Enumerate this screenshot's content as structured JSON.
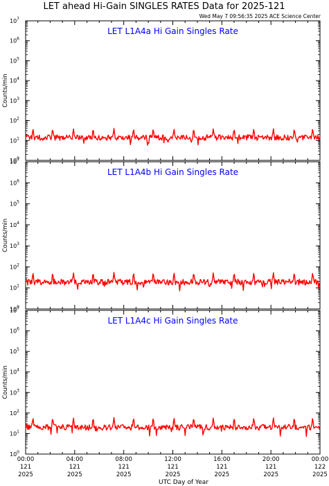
{
  "header": {
    "title": "LET ahead Hi-Gain SINGLES RATES Data for 2025-121",
    "timestamp": "Wed May  7 09:56:35 2025 ACE Science Center"
  },
  "colors": {
    "series_line": "#ff0000",
    "panel_title": "#0000ff",
    "axis": "#000000",
    "background": "#ffffff"
  },
  "x_axis": {
    "label": "UTC Day of Year",
    "ticks": [
      {
        "time": "00:00",
        "day": "121",
        "year": "2025",
        "hour": 0
      },
      {
        "time": "04:00",
        "day": "121",
        "year": "2025",
        "hour": 4
      },
      {
        "time": "08:00",
        "day": "121",
        "year": "2025",
        "hour": 8
      },
      {
        "time": "12:00",
        "day": "121",
        "year": "2025",
        "hour": 12
      },
      {
        "time": "16:00",
        "day": "121",
        "year": "2025",
        "hour": 16
      },
      {
        "time": "20:00",
        "day": "121",
        "year": "2025",
        "hour": 20
      },
      {
        "time": "00:00",
        "day": "122",
        "year": "2025",
        "hour": 24
      }
    ]
  },
  "chart_data": [
    {
      "type": "line",
      "title": "LET L1A4a Hi Gain Singles Rate",
      "ylabel": "Counts/min",
      "yscale": "log",
      "ylim": [
        1,
        10000000
      ],
      "xlim_hours": [
        0,
        24
      ],
      "yticks": [
        {
          "base": "10",
          "exp": "0",
          "value": 1
        },
        {
          "base": "10",
          "exp": "1",
          "value": 10
        },
        {
          "base": "10",
          "exp": "2",
          "value": 100
        },
        {
          "base": "10",
          "exp": "3",
          "value": 1000
        },
        {
          "base": "10",
          "exp": "4",
          "value": 10000
        },
        {
          "base": "10",
          "exp": "5",
          "value": 100000
        },
        {
          "base": "10",
          "exp": "6",
          "value": 1000000
        },
        {
          "base": "10",
          "exp": "7",
          "value": 10000000
        }
      ],
      "series": [
        {
          "baseline_counts_per_min": 14,
          "spike_peak_counts_per_min": 40,
          "spike_times_hours": [
            0.6,
            2.2,
            3.9,
            5.5,
            7.2,
            8.8,
            10.4,
            12.1,
            13.7,
            15.3,
            17.0,
            18.6,
            20.2,
            21.9,
            23.4
          ]
        }
      ]
    },
    {
      "type": "line",
      "title": "LET L1A4b Hi Gain Singles Rate",
      "ylabel": "Counts/min",
      "yscale": "log",
      "ylim": [
        1,
        10000000
      ],
      "xlim_hours": [
        0,
        24
      ],
      "yticks": [
        {
          "base": "10",
          "exp": "0",
          "value": 1
        },
        {
          "base": "10",
          "exp": "1",
          "value": 10
        },
        {
          "base": "10",
          "exp": "2",
          "value": 100
        },
        {
          "base": "10",
          "exp": "3",
          "value": 1000
        },
        {
          "base": "10",
          "exp": "4",
          "value": 10000
        },
        {
          "base": "10",
          "exp": "5",
          "value": 100000
        },
        {
          "base": "10",
          "exp": "6",
          "value": 1000000
        },
        {
          "base": "10",
          "exp": "7",
          "value": 10000000
        }
      ],
      "series": [
        {
          "baseline_counts_per_min": 19,
          "spike_peak_counts_per_min": 55,
          "spike_times_hours": [
            0.6,
            2.2,
            3.9,
            5.5,
            7.2,
            8.8,
            10.4,
            12.1,
            13.7,
            15.3,
            17.0,
            18.6,
            20.2,
            21.9,
            23.4
          ]
        }
      ]
    },
    {
      "type": "line",
      "title": "LET L1A4c Hi Gain Singles Rate",
      "ylabel": "Counts/min",
      "yscale": "log",
      "ylim": [
        1,
        10000000
      ],
      "xlim_hours": [
        0,
        24
      ],
      "yticks": [
        {
          "base": "10",
          "exp": "0",
          "value": 1
        },
        {
          "base": "10",
          "exp": "1",
          "value": 10
        },
        {
          "base": "10",
          "exp": "2",
          "value": 100
        },
        {
          "base": "10",
          "exp": "3",
          "value": 1000
        },
        {
          "base": "10",
          "exp": "4",
          "value": 10000
        },
        {
          "base": "10",
          "exp": "5",
          "value": 100000
        },
        {
          "base": "10",
          "exp": "6",
          "value": 1000000
        },
        {
          "base": "10",
          "exp": "7",
          "value": 10000000
        }
      ],
      "series": [
        {
          "baseline_counts_per_min": 20,
          "spike_peak_counts_per_min": 60,
          "spike_times_hours": [
            0.6,
            2.2,
            3.9,
            5.5,
            7.2,
            8.8,
            10.4,
            12.1,
            13.7,
            15.3,
            17.0,
            18.6,
            20.2,
            21.9,
            23.4
          ]
        }
      ]
    }
  ]
}
